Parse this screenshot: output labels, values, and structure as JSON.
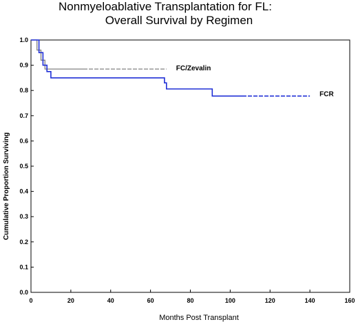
{
  "chart_data": {
    "type": "line",
    "title": "Nonmyeloablative Transplantation for FL:",
    "subtitle": "Overall Survival by Regimen",
    "xlabel": "Months Post Transplant",
    "ylabel": "Cumulative Proportion Surviving",
    "xlim": [
      0,
      160
    ],
    "ylim": [
      0,
      1.0
    ],
    "xticks": [
      "0",
      "20",
      "40",
      "60",
      "80",
      "100",
      "120",
      "140",
      "160"
    ],
    "yticks": [
      "0.0",
      "0.1",
      "0.2",
      "0.3",
      "0.4",
      "0.5",
      "0.6",
      "0.7",
      "0.8",
      "0.9",
      "1.0"
    ],
    "grid": false,
    "legend": "inline-labels",
    "series": [
      {
        "name": "FC/Zevalin",
        "color": "#808080",
        "points": [
          [
            0,
            1.0
          ],
          [
            3,
            1.0
          ],
          [
            3,
            0.96
          ],
          [
            5,
            0.96
          ],
          [
            5,
            0.92
          ],
          [
            7,
            0.92
          ],
          [
            7,
            0.885
          ],
          [
            68,
            0.885
          ]
        ]
      },
      {
        "name": "FCR",
        "color": "#1f2fd6",
        "points": [
          [
            0,
            1.0
          ],
          [
            4,
            1.0
          ],
          [
            4,
            0.95
          ],
          [
            6,
            0.95
          ],
          [
            6,
            0.9
          ],
          [
            8,
            0.9
          ],
          [
            8,
            0.875
          ],
          [
            10,
            0.875
          ],
          [
            10,
            0.85
          ],
          [
            67,
            0.85
          ],
          [
            67,
            0.83
          ],
          [
            68,
            0.83
          ],
          [
            68,
            0.806
          ],
          [
            91,
            0.806
          ],
          [
            91,
            0.778
          ],
          [
            140,
            0.778
          ]
        ]
      }
    ]
  }
}
